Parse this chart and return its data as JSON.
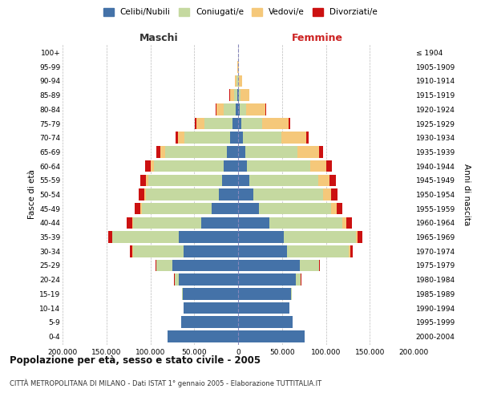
{
  "age_groups": [
    "0-4",
    "5-9",
    "10-14",
    "15-19",
    "20-24",
    "25-29",
    "30-34",
    "35-39",
    "40-44",
    "45-49",
    "50-54",
    "55-59",
    "60-64",
    "65-69",
    "70-74",
    "75-79",
    "80-84",
    "85-89",
    "90-94",
    "95-99",
    "100+"
  ],
  "birth_years": [
    "2000-2004",
    "1995-1999",
    "1990-1994",
    "1985-1989",
    "1980-1984",
    "1975-1979",
    "1970-1974",
    "1965-1969",
    "1960-1964",
    "1955-1959",
    "1950-1954",
    "1945-1949",
    "1940-1944",
    "1935-1939",
    "1930-1934",
    "1925-1929",
    "1920-1924",
    "1915-1919",
    "1910-1914",
    "1905-1909",
    "≤ 1904"
  ],
  "maschi": {
    "celibi": [
      80000,
      65000,
      62000,
      63000,
      68000,
      75000,
      62000,
      68000,
      42000,
      30000,
      22000,
      18000,
      16000,
      13000,
      9000,
      6000,
      2500,
      1000,
      400,
      100,
      50
    ],
    "coniugati": [
      100,
      100,
      200,
      600,
      4500,
      18000,
      58000,
      75000,
      78000,
      80000,
      83000,
      84000,
      80000,
      70000,
      52000,
      32000,
      14000,
      4000,
      1200,
      300,
      80
    ],
    "vedovi": [
      5,
      5,
      10,
      20,
      60,
      150,
      400,
      700,
      1000,
      1500,
      2000,
      2800,
      4000,
      5500,
      7500,
      9500,
      8500,
      4500,
      1800,
      500,
      150
    ],
    "divorziati": [
      5,
      5,
      10,
      30,
      150,
      700,
      2500,
      4500,
      5500,
      6000,
      6500,
      7000,
      6000,
      4500,
      3000,
      1800,
      700,
      200,
      50,
      15,
      5
    ]
  },
  "femmine": {
    "nubili": [
      76000,
      62000,
      58000,
      60000,
      66000,
      70000,
      56000,
      52000,
      36000,
      24000,
      17000,
      13000,
      10000,
      8000,
      5500,
      3500,
      1500,
      600,
      200,
      60,
      20
    ],
    "coniugate": [
      100,
      100,
      200,
      800,
      5500,
      22000,
      70000,
      82000,
      83000,
      82000,
      80000,
      78000,
      72000,
      60000,
      44000,
      24000,
      8000,
      2000,
      500,
      100,
      30
    ],
    "vedove": [
      5,
      5,
      15,
      40,
      150,
      500,
      1500,
      2500,
      4000,
      6000,
      9000,
      13000,
      18000,
      24000,
      28000,
      30000,
      22000,
      10000,
      3500,
      900,
      250
    ],
    "divorziate": [
      5,
      5,
      10,
      50,
      300,
      1100,
      3500,
      5500,
      6500,
      7000,
      7500,
      7500,
      6500,
      5000,
      3000,
      1500,
      500,
      130,
      30,
      8,
      3
    ]
  },
  "colors": {
    "celibi_nubili": "#4472a8",
    "coniugati": "#c5d9a0",
    "vedovi": "#f5c87a",
    "divorziati": "#cc1111"
  },
  "xlim": 200000,
  "xticks": [
    -200000,
    -150000,
    -100000,
    -50000,
    0,
    50000,
    100000,
    150000,
    200000
  ],
  "title": "Popolazione per età, sesso e stato civile - 2005",
  "subtitle": "CITTÀ METROPOLITANA DI MILANO - Dati ISTAT 1° gennaio 2005 - Elaborazione TUTTITALIA.IT",
  "xlabel_left": "Maschi",
  "xlabel_right": "Femmine",
  "ylabel_left": "Fasce di età",
  "ylabel_right": "Anni di nascita",
  "legend_labels": [
    "Celibi/Nubili",
    "Coniugati/e",
    "Vedovi/e",
    "Divorziati/e"
  ],
  "background_color": "#ffffff",
  "grid_color": "#bbbbbb",
  "bar_height": 0.82
}
